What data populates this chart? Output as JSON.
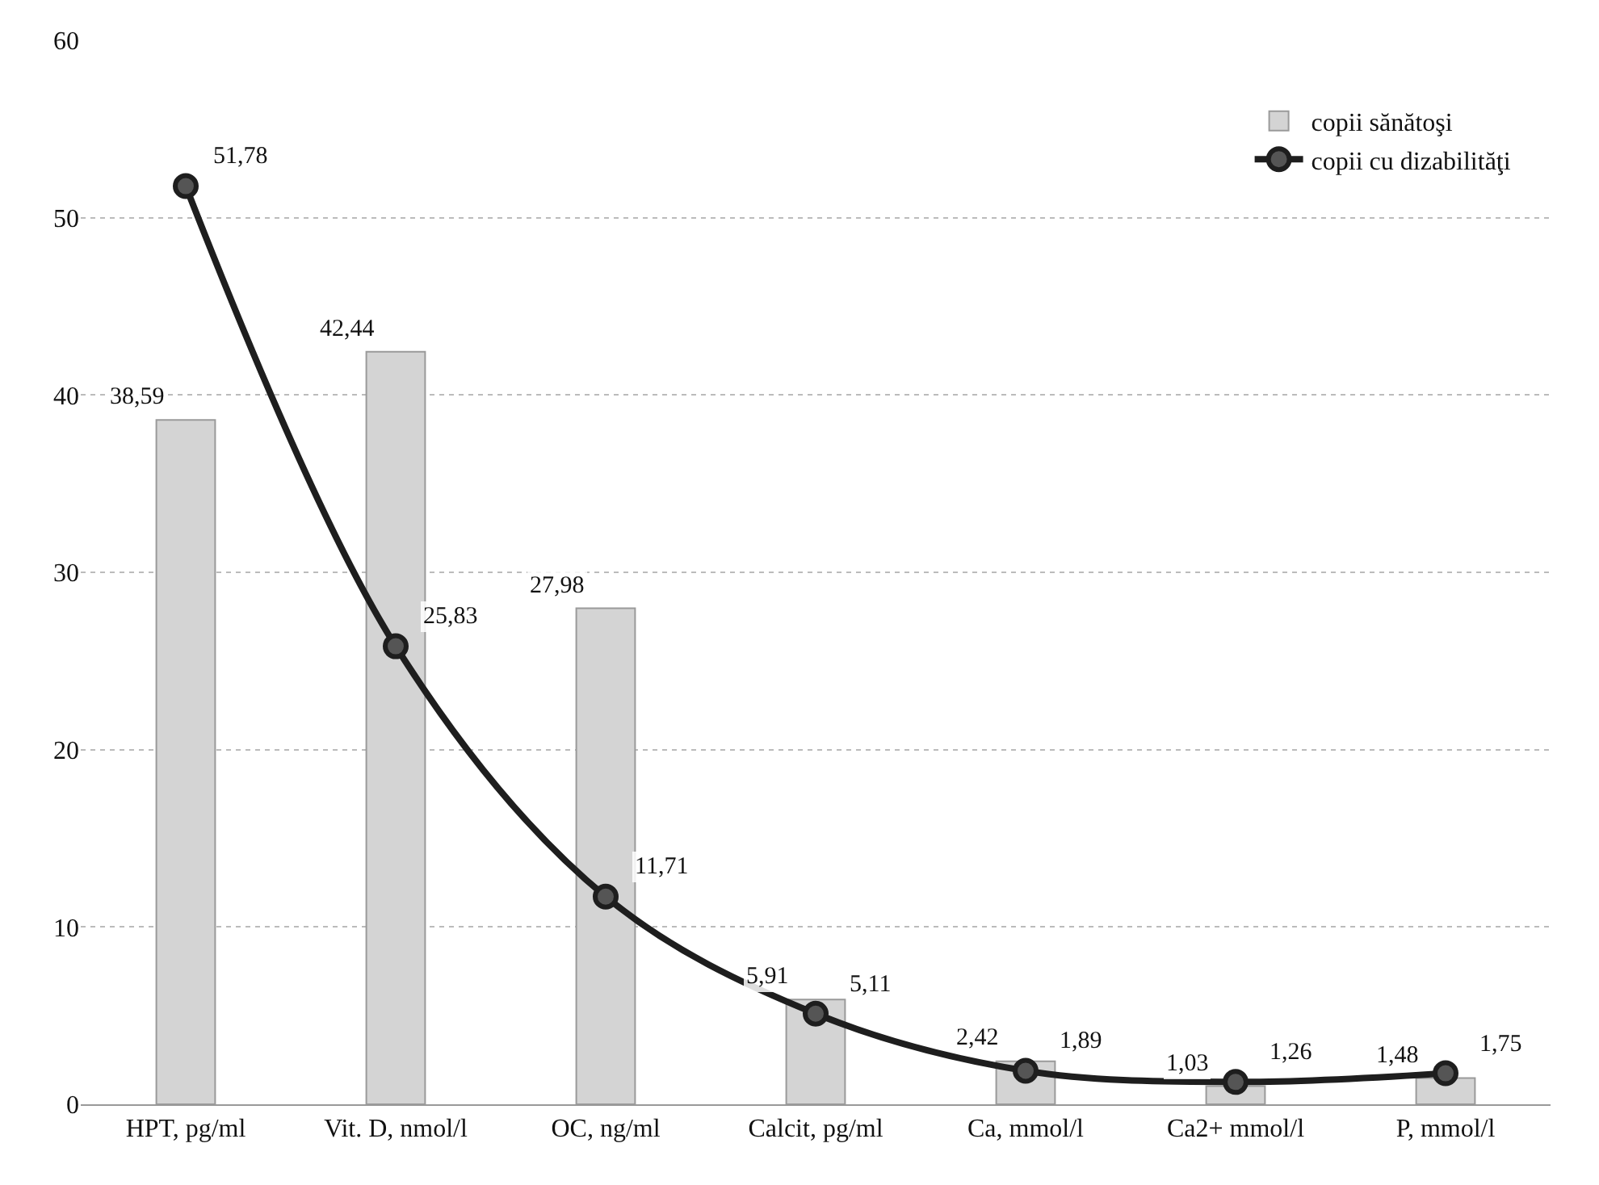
{
  "chart_data": {
    "type": "bar",
    "categories": [
      "HPT, pg/ml",
      "Vit. D, nmol/l",
      "OC, ng/ml",
      "Calcit, pg/ml",
      "Ca, mmol/l",
      "Ca2+ mmol/l",
      "P, mmol/l"
    ],
    "series": [
      {
        "name": "copii sănătoşi",
        "color": "#d4d4d4",
        "values": [
          38.59,
          42.44,
          27.98,
          5.91,
          2.42,
          1.03,
          1.48
        ],
        "value_labels": [
          "38,59",
          "42,44",
          "27,98",
          "5,91",
          "2,42",
          "1,03",
          "1,48"
        ]
      },
      {
        "name": "copii cu dizabilităţi",
        "type": "line",
        "color": "#1e1e1e",
        "marker": "circle",
        "line_style": "solid",
        "values": [
          51.78,
          25.83,
          11.71,
          5.11,
          1.89,
          1.26,
          1.75
        ],
        "value_labels": [
          "51,78",
          "25,83",
          "11,71",
          "5,11",
          "1,89",
          "1,26",
          "1,75"
        ]
      }
    ],
    "ylim": [
      0,
      60
    ],
    "yticks": [
      0,
      10,
      20,
      30,
      40,
      50,
      60
    ],
    "grid": "y",
    "legend": "top right"
  }
}
